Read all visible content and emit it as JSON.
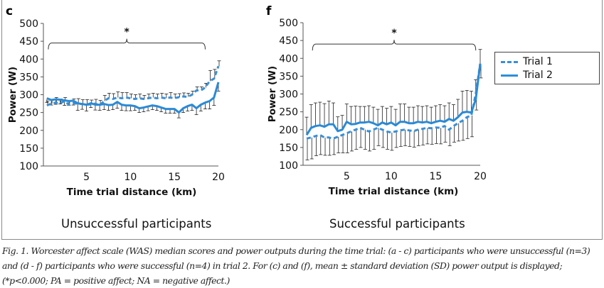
{
  "colors": {
    "trial1": "#3a8fd6",
    "trial2": "#2a8ad6",
    "error_bar": "#222222",
    "axis": "#555555"
  },
  "legend": {
    "items": [
      {
        "label": "Trial 1",
        "style": "dashed"
      },
      {
        "label": "Trial 2",
        "style": "solid"
      }
    ]
  },
  "group_titles": {
    "left": "Unsuccessful participants",
    "right": "Successful participants"
  },
  "caption": "Fig. 1. Worcester affect scale (WAS) median scores and power outputs during the time trial: (a - c) participants who were unsuccessful (n=3) and (d - f) participants who were successful (n=4) in trial 2. For (c) and (f), mean ± standard deviation (SD) power output is displayed; (*p<0.000; PA = positive affect; NA = negative affect.)",
  "chart_data": [
    {
      "panel": "c",
      "type": "line",
      "title": "",
      "xlabel": "Time trial distance (km)",
      "ylabel": "Power (W)",
      "xlim": [
        0.5,
        20
      ],
      "ylim": [
        100,
        500
      ],
      "xticks": [
        5,
        10,
        15,
        20
      ],
      "yticks": [
        100,
        150,
        200,
        250,
        300,
        350,
        400,
        450,
        500
      ],
      "grid": false,
      "annotation": {
        "text": "*",
        "type": "brace",
        "x_range": [
          0.5,
          18.5
        ],
        "y": 445
      },
      "x": [
        0.5,
        1,
        1.5,
        2,
        2.5,
        3,
        3.5,
        4,
        4.5,
        5,
        5.5,
        6,
        6.5,
        7,
        7.5,
        8,
        8.5,
        9,
        9.5,
        10,
        10.5,
        11,
        11.5,
        12,
        12.5,
        13,
        13.5,
        14,
        14.5,
        15,
        15.5,
        16,
        16.5,
        17,
        17.5,
        18,
        18.5,
        19,
        19.5,
        20
      ],
      "series": [
        {
          "name": "Trial 1",
          "style": "dashed",
          "values": [
            270,
            275,
            278,
            276,
            282,
            272,
            276,
            275,
            274,
            272,
            273,
            275,
            270,
            282,
            290,
            288,
            292,
            290,
            292,
            290,
            288,
            290,
            288,
            290,
            292,
            290,
            292,
            290,
            292,
            290,
            293,
            295,
            294,
            300,
            312,
            312,
            320,
            338,
            345,
            380
          ],
          "sd": [
            12,
            12,
            14,
            12,
            10,
            10,
            12,
            14,
            12,
            14,
            12,
            12,
            14,
            16,
            14,
            15,
            16,
            16,
            14,
            12,
            12,
            12,
            10,
            12,
            12,
            12,
            12,
            12,
            14,
            12,
            10,
            10,
            10,
            10,
            10,
            10,
            12,
            30,
            26,
            15
          ]
        },
        {
          "name": "Trial 2",
          "style": "solid",
          "values": [
            290,
            285,
            287,
            286,
            284,
            282,
            283,
            276,
            274,
            272,
            276,
            272,
            272,
            274,
            271,
            272,
            280,
            272,
            270,
            270,
            268,
            262,
            264,
            267,
            270,
            268,
            264,
            260,
            260,
            260,
            250,
            262,
            268,
            272,
            262,
            272,
            278,
            282,
            292,
            335
          ],
          "sd": [
            12,
            14,
            14,
            12,
            14,
            12,
            12,
            20,
            15,
            18,
            12,
            15,
            16,
            16,
            15,
            14,
            18,
            16,
            15,
            15,
            12,
            12,
            12,
            12,
            12,
            12,
            12,
            12,
            12,
            12,
            15,
            12,
            14,
            16,
            18,
            18,
            18,
            22,
            22,
            25
          ]
        }
      ]
    },
    {
      "panel": "f",
      "type": "line",
      "title": "",
      "xlabel": "Time trial distance (km)",
      "ylabel": "Power (W)",
      "xlim": [
        0.5,
        20
      ],
      "ylim": [
        100,
        500
      ],
      "xticks": [
        5,
        10,
        15,
        20
      ],
      "yticks": [
        100,
        150,
        200,
        250,
        300,
        350,
        400,
        450,
        500
      ],
      "grid": false,
      "annotation": {
        "text": "*",
        "type": "brace",
        "x_range": [
          1,
          19.5
        ],
        "y": 440
      },
      "x": [
        0.5,
        1,
        1.5,
        2,
        2.5,
        3,
        3.5,
        4,
        4.5,
        5,
        5.5,
        6,
        6.5,
        7,
        7.5,
        8,
        8.5,
        9,
        9.5,
        10,
        10.5,
        11,
        11.5,
        12,
        12.5,
        13,
        13.5,
        14,
        14.5,
        15,
        15.5,
        16,
        16.5,
        17,
        17.5,
        18,
        18.5,
        19,
        19.5,
        20
      ],
      "series": [
        {
          "name": "Trial 1",
          "style": "dashed",
          "values": [
            175,
            178,
            182,
            185,
            178,
            178,
            175,
            180,
            185,
            190,
            195,
            200,
            205,
            200,
            195,
            200,
            205,
            200,
            195,
            192,
            195,
            198,
            200,
            198,
            196,
            200,
            202,
            205,
            204,
            206,
            205,
            210,
            200,
            210,
            218,
            225,
            235,
            240,
            300,
            385
          ],
          "sd": [
            60,
            60,
            55,
            55,
            50,
            50,
            45,
            45,
            50,
            55,
            55,
            55,
            55,
            55,
            55,
            55,
            50,
            50,
            50,
            50,
            45,
            45,
            45,
            45,
            45,
            45,
            45,
            45,
            45,
            45,
            45,
            45,
            45,
            45,
            50,
            55,
            60,
            60,
            45,
            40
          ]
        },
        {
          "name": "Trial 2",
          "style": "solid",
          "values": [
            185,
            205,
            210,
            212,
            208,
            215,
            215,
            196,
            200,
            222,
            215,
            216,
            220,
            220,
            222,
            218,
            212,
            220,
            215,
            220,
            212,
            222,
            222,
            218,
            218,
            222,
            220,
            222,
            218,
            222,
            225,
            222,
            230,
            225,
            235,
            248,
            250,
            248,
            285,
            385
          ],
          "sd": [
            50,
            65,
            65,
            65,
            65,
            65,
            60,
            40,
            40,
            50,
            50,
            50,
            45,
            45,
            45,
            45,
            45,
            45,
            45,
            45,
            45,
            50,
            50,
            45,
            45,
            45,
            45,
            45,
            45,
            45,
            45,
            45,
            45,
            45,
            50,
            60,
            60,
            60,
            55,
            40
          ]
        }
      ]
    }
  ]
}
